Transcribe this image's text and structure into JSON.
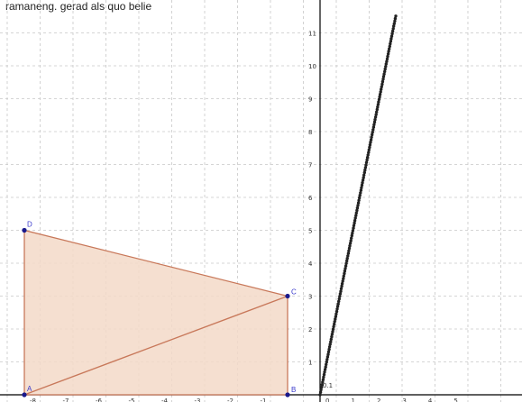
{
  "header_text": "ramaneng. gerad als quo belie",
  "colors": {
    "grid": "#c8c8c8",
    "axis": "#000000",
    "polygon_fill": "#f3d9c8",
    "polygon_stroke": "#c8785a",
    "point": "#1a1a8c",
    "trace_point": "#222222"
  },
  "left_view": {
    "x_ticks": [
      "-8",
      "-7",
      "-6",
      "-5",
      "-4",
      "-3",
      "-2",
      "-1"
    ],
    "points": [
      {
        "label": "A",
        "x": -8,
        "y": 0
      },
      {
        "label": "B",
        "x": 0,
        "y": 0
      },
      {
        "label": "C",
        "x": 0,
        "y": 3
      },
      {
        "label": "D",
        "x": -8,
        "y": 5
      }
    ]
  },
  "right_view": {
    "origin_label": "0.1",
    "x_ticks": [
      "0",
      "1",
      "2",
      "3",
      "4",
      "5"
    ],
    "y_ticks": [
      "1",
      "2",
      "3",
      "4",
      "5",
      "6",
      "7",
      "8",
      "9",
      "10",
      "11"
    ],
    "trace_slope": 3.9,
    "trace_x_max": 2.95
  }
}
